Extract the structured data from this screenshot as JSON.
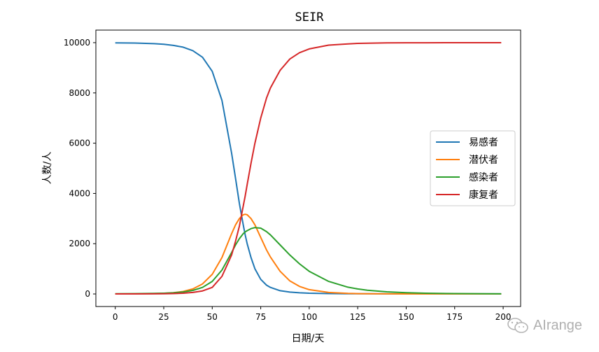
{
  "chart_data": {
    "type": "line",
    "title": "SEIR",
    "xlabel": "日期/天",
    "ylabel": "人数/人",
    "xlim": [
      -10,
      209
    ],
    "ylim": [
      -500,
      10500
    ],
    "xticks": [
      0,
      25,
      50,
      75,
      100,
      125,
      150,
      175,
      200
    ],
    "yticks": [
      0,
      2000,
      4000,
      6000,
      8000,
      10000
    ],
    "legend_position": "center-right",
    "grid": false,
    "x": [
      0,
      10,
      20,
      25,
      30,
      35,
      40,
      45,
      50,
      55,
      60,
      62,
      64,
      66,
      67,
      68,
      70,
      72,
      75,
      78,
      80,
      85,
      90,
      95,
      100,
      110,
      120,
      125,
      130,
      140,
      150,
      160,
      175,
      190,
      199
    ],
    "series": [
      {
        "name": "易感者",
        "color": "#1f77b4",
        "values": [
          9990,
          9985,
          9960,
          9935,
          9890,
          9820,
          9680,
          9420,
          8860,
          7700,
          5600,
          4600,
          3600,
          2750,
          2350,
          2000,
          1450,
          1000,
          580,
          350,
          260,
          130,
          75,
          45,
          30,
          15,
          10,
          8,
          6,
          5,
          4,
          4,
          4,
          4,
          4
        ]
      },
      {
        "name": "潜伏者",
        "color": "#ff7f0e",
        "values": [
          0,
          5,
          15,
          25,
          50,
          100,
          200,
          400,
          780,
          1450,
          2400,
          2750,
          3000,
          3150,
          3170,
          3150,
          3000,
          2750,
          2250,
          1750,
          1470,
          900,
          520,
          300,
          170,
          60,
          20,
          12,
          8,
          4,
          2,
          1,
          0,
          0,
          0
        ]
      },
      {
        "name": "感染者",
        "color": "#2ca02c",
        "values": [
          10,
          12,
          20,
          30,
          45,
          80,
          140,
          260,
          500,
          950,
          1650,
          1950,
          2200,
          2400,
          2470,
          2520,
          2600,
          2640,
          2620,
          2480,
          2350,
          1950,
          1550,
          1200,
          900,
          500,
          270,
          200,
          150,
          85,
          50,
          30,
          15,
          8,
          5
        ]
      },
      {
        "name": "康复者",
        "color": "#d62728",
        "values": [
          0,
          0,
          5,
          10,
          15,
          30,
          60,
          120,
          260,
          700,
          1550,
          2100,
          2700,
          3500,
          3900,
          4350,
          5200,
          6000,
          7000,
          7800,
          8200,
          8900,
          9350,
          9600,
          9750,
          9900,
          9950,
          9970,
          9980,
          9990,
          9995,
          9997,
          9998,
          9999,
          9999
        ]
      }
    ]
  }
}
